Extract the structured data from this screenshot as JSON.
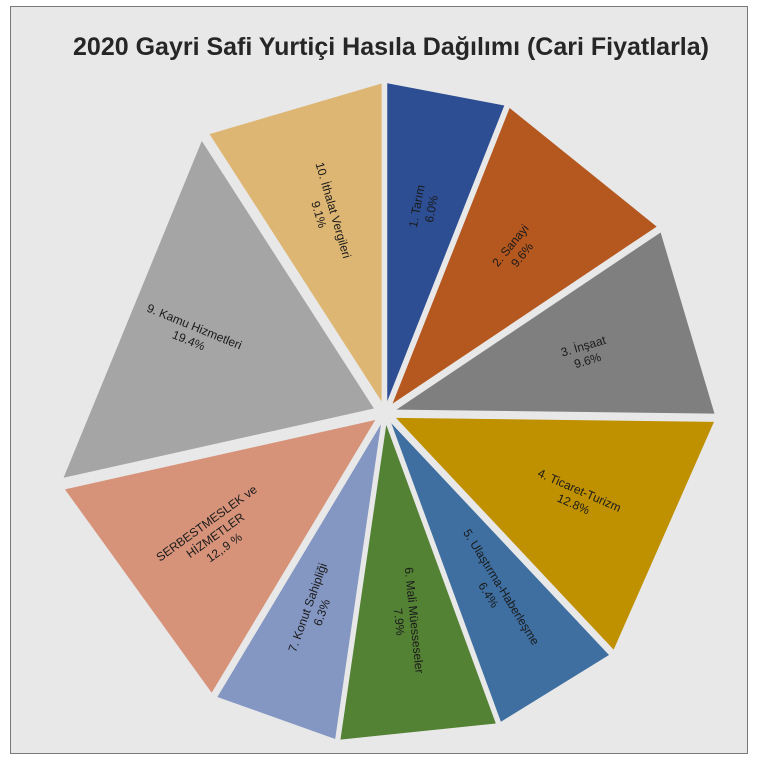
{
  "chart_data": {
    "type": "pie",
    "title": "2020 Gayri Safi Yurtiçi Hasıla Dağılımı (Cari Fiyatlarla)",
    "slices": [
      {
        "lines": [
          "1. Tarım",
          "6.0%"
        ],
        "value": 6.0,
        "color": "#2e4e94"
      },
      {
        "lines": [
          "2. Sanayi",
          "9.6%"
        ],
        "value": 9.6,
        "color": "#b5581f"
      },
      {
        "lines": [
          "3. İnşaat",
          "9.6%"
        ],
        "value": 9.6,
        "color": "#7f7f7f"
      },
      {
        "lines": [
          "4. Ticaret-Turizm",
          "12.8%"
        ],
        "value": 12.8,
        "color": "#bf9000"
      },
      {
        "lines": [
          "5. Ulaştırma-Haberleşme",
          "6.4%"
        ],
        "value": 6.4,
        "color": "#3e6fa0"
      },
      {
        "lines": [
          "6. Mali Müesseseler",
          "7.9%"
        ],
        "value": 7.9,
        "color": "#548235"
      },
      {
        "lines": [
          "7. Konut Sahipliği",
          "6.3%"
        ],
        "value": 6.3,
        "color": "#8496c2"
      },
      {
        "lines": [
          "SERBESTMESLEK ve",
          "HİZMETLER",
          "12,.9 %"
        ],
        "value": 12.9,
        "color": "#d6937a"
      },
      {
        "lines": [
          "9. Kamu Hizmetleri",
          "19.4%"
        ],
        "value": 19.4,
        "color": "#a5a5a5"
      },
      {
        "lines": [
          "10. İthalat Vergileri",
          "9.1%"
        ],
        "value": 9.1,
        "color": "#deb673"
      }
    ]
  }
}
